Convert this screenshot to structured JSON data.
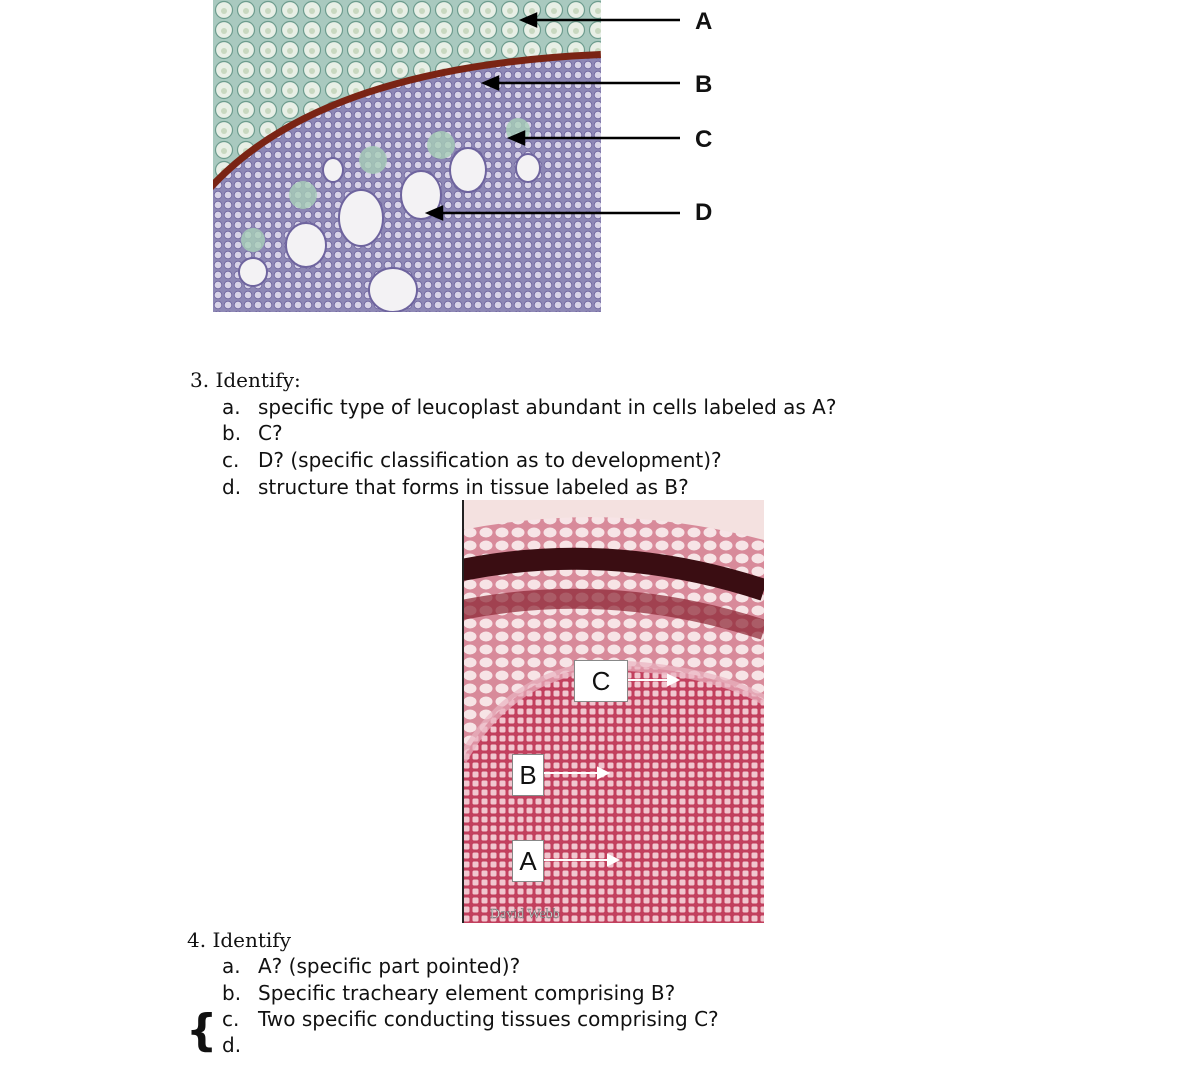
{
  "figure1": {
    "labels": [
      "A",
      "B",
      "C",
      "D"
    ]
  },
  "question3": {
    "heading": "3. Identify:",
    "items": [
      {
        "letter": "a.",
        "text": "specific type of leucoplast abundant in cells labeled as A?"
      },
      {
        "letter": "b.",
        "text": "C?"
      },
      {
        "letter": "c.",
        "text": "D? (specific classification as to development)?"
      },
      {
        "letter": "d.",
        "text": "structure that forms in tissue labeled as B?"
      }
    ]
  },
  "figure2": {
    "labels": [
      "C",
      "B",
      "A"
    ],
    "watermark": "David Webb"
  },
  "question4": {
    "heading": "4. Identify",
    "brace": "{",
    "items": [
      {
        "letter": "a.",
        "text": "A? (specific part pointed)?"
      },
      {
        "letter": "b.",
        "text": "Specific tracheary element comprising B?"
      },
      {
        "letter": "c.",
        "text": "Two specific conducting tissues comprising C?"
      },
      {
        "letter": "d."
      }
    ]
  }
}
